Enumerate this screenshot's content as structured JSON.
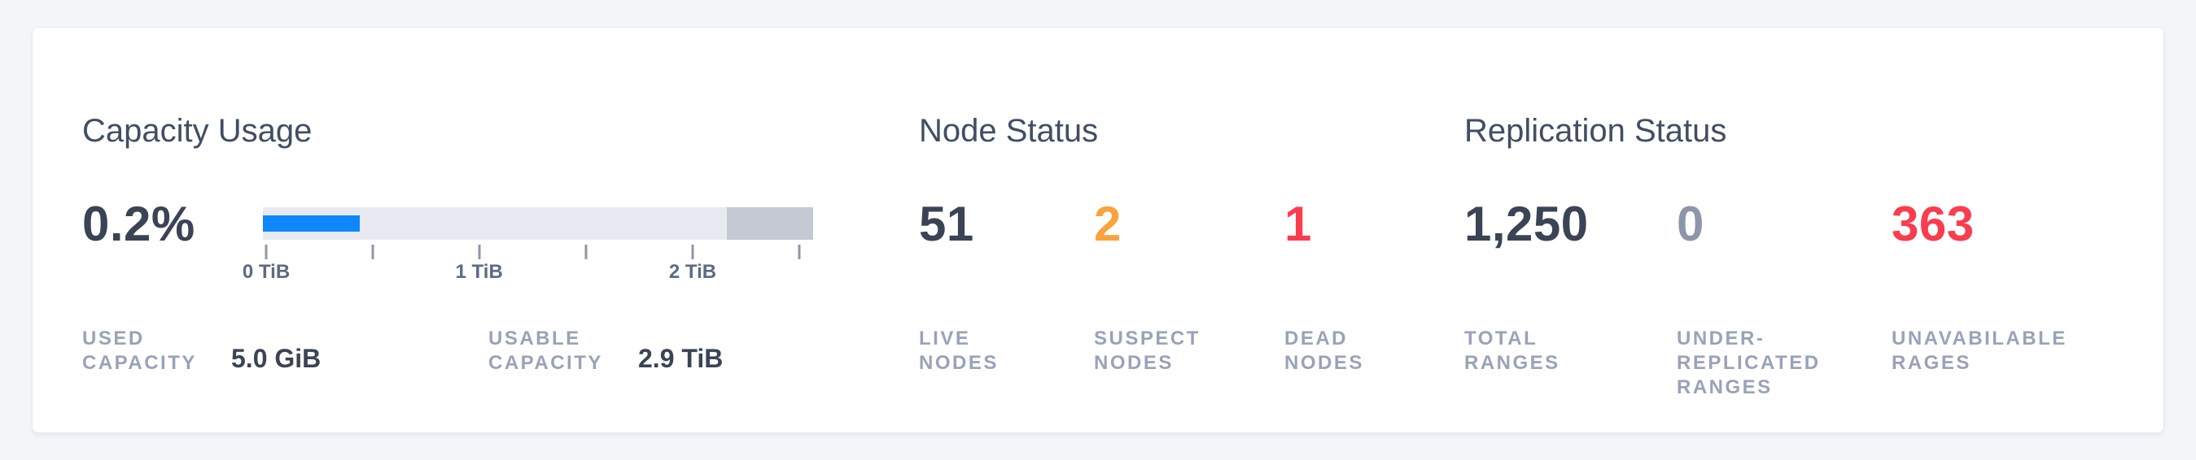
{
  "colors": {
    "page_background": "#f3f5f9",
    "card_background": "#ffffff",
    "heading_text": "#414e63",
    "stat_dark": "#3a4455",
    "stat_orange": "#f9a33c",
    "stat_red": "#fa3c4f",
    "stat_muted": "#8d95ab",
    "caps_label": "#99a2b8",
    "bar_used_blue": "#0e87fd",
    "bar_track_gray": "#e8eaf1",
    "bar_reserved_gray": "#c5c9d3",
    "axis_text": "#5c6a84"
  },
  "capacity": {
    "title": "Capacity Usage",
    "percent_label": "0.2%",
    "chart": {
      "type": "bar",
      "percent_used": 0.2,
      "used_capacity": "5.0 GiB",
      "usable_capacity": "2.9 TiB",
      "axis_unit": "TiB",
      "used_display_pct": 17.6,
      "reserved_display_pct": 15.7,
      "ticks": [
        {
          "pos_pct": 0.6,
          "label": "0 TiB"
        },
        {
          "pos_pct": 20.0,
          "label": ""
        },
        {
          "pos_pct": 39.3,
          "label": "1 TiB"
        },
        {
          "pos_pct": 58.7,
          "label": ""
        },
        {
          "pos_pct": 78.1,
          "label": "2 TiB"
        },
        {
          "pos_pct": 97.5,
          "label": ""
        }
      ]
    },
    "stats": [
      {
        "label": "USED\nCAPACITY",
        "value": "5.0 GiB"
      },
      {
        "label": "USABLE\nCAPACITY",
        "value": "2.9 TiB"
      }
    ]
  },
  "node_status": {
    "title": "Node Status",
    "stats": [
      {
        "value": "51",
        "label": "LIVE\nNODES",
        "tone": "dark"
      },
      {
        "value": "2",
        "label": "SUSPECT\nNODES",
        "tone": "orange"
      },
      {
        "value": "1",
        "label": "DEAD\nNODES",
        "tone": "red"
      }
    ]
  },
  "replication_status": {
    "title": "Replication Status",
    "stats": [
      {
        "value": "1,250",
        "label": "TOTAL\nRANGES",
        "tone": "dark"
      },
      {
        "value": "0",
        "label": "UNDER-\nREPLICATED\nRANGES",
        "tone": "muted"
      },
      {
        "value": "363",
        "label": "UNAVABILABLE\nRAGES",
        "tone": "red"
      }
    ]
  }
}
